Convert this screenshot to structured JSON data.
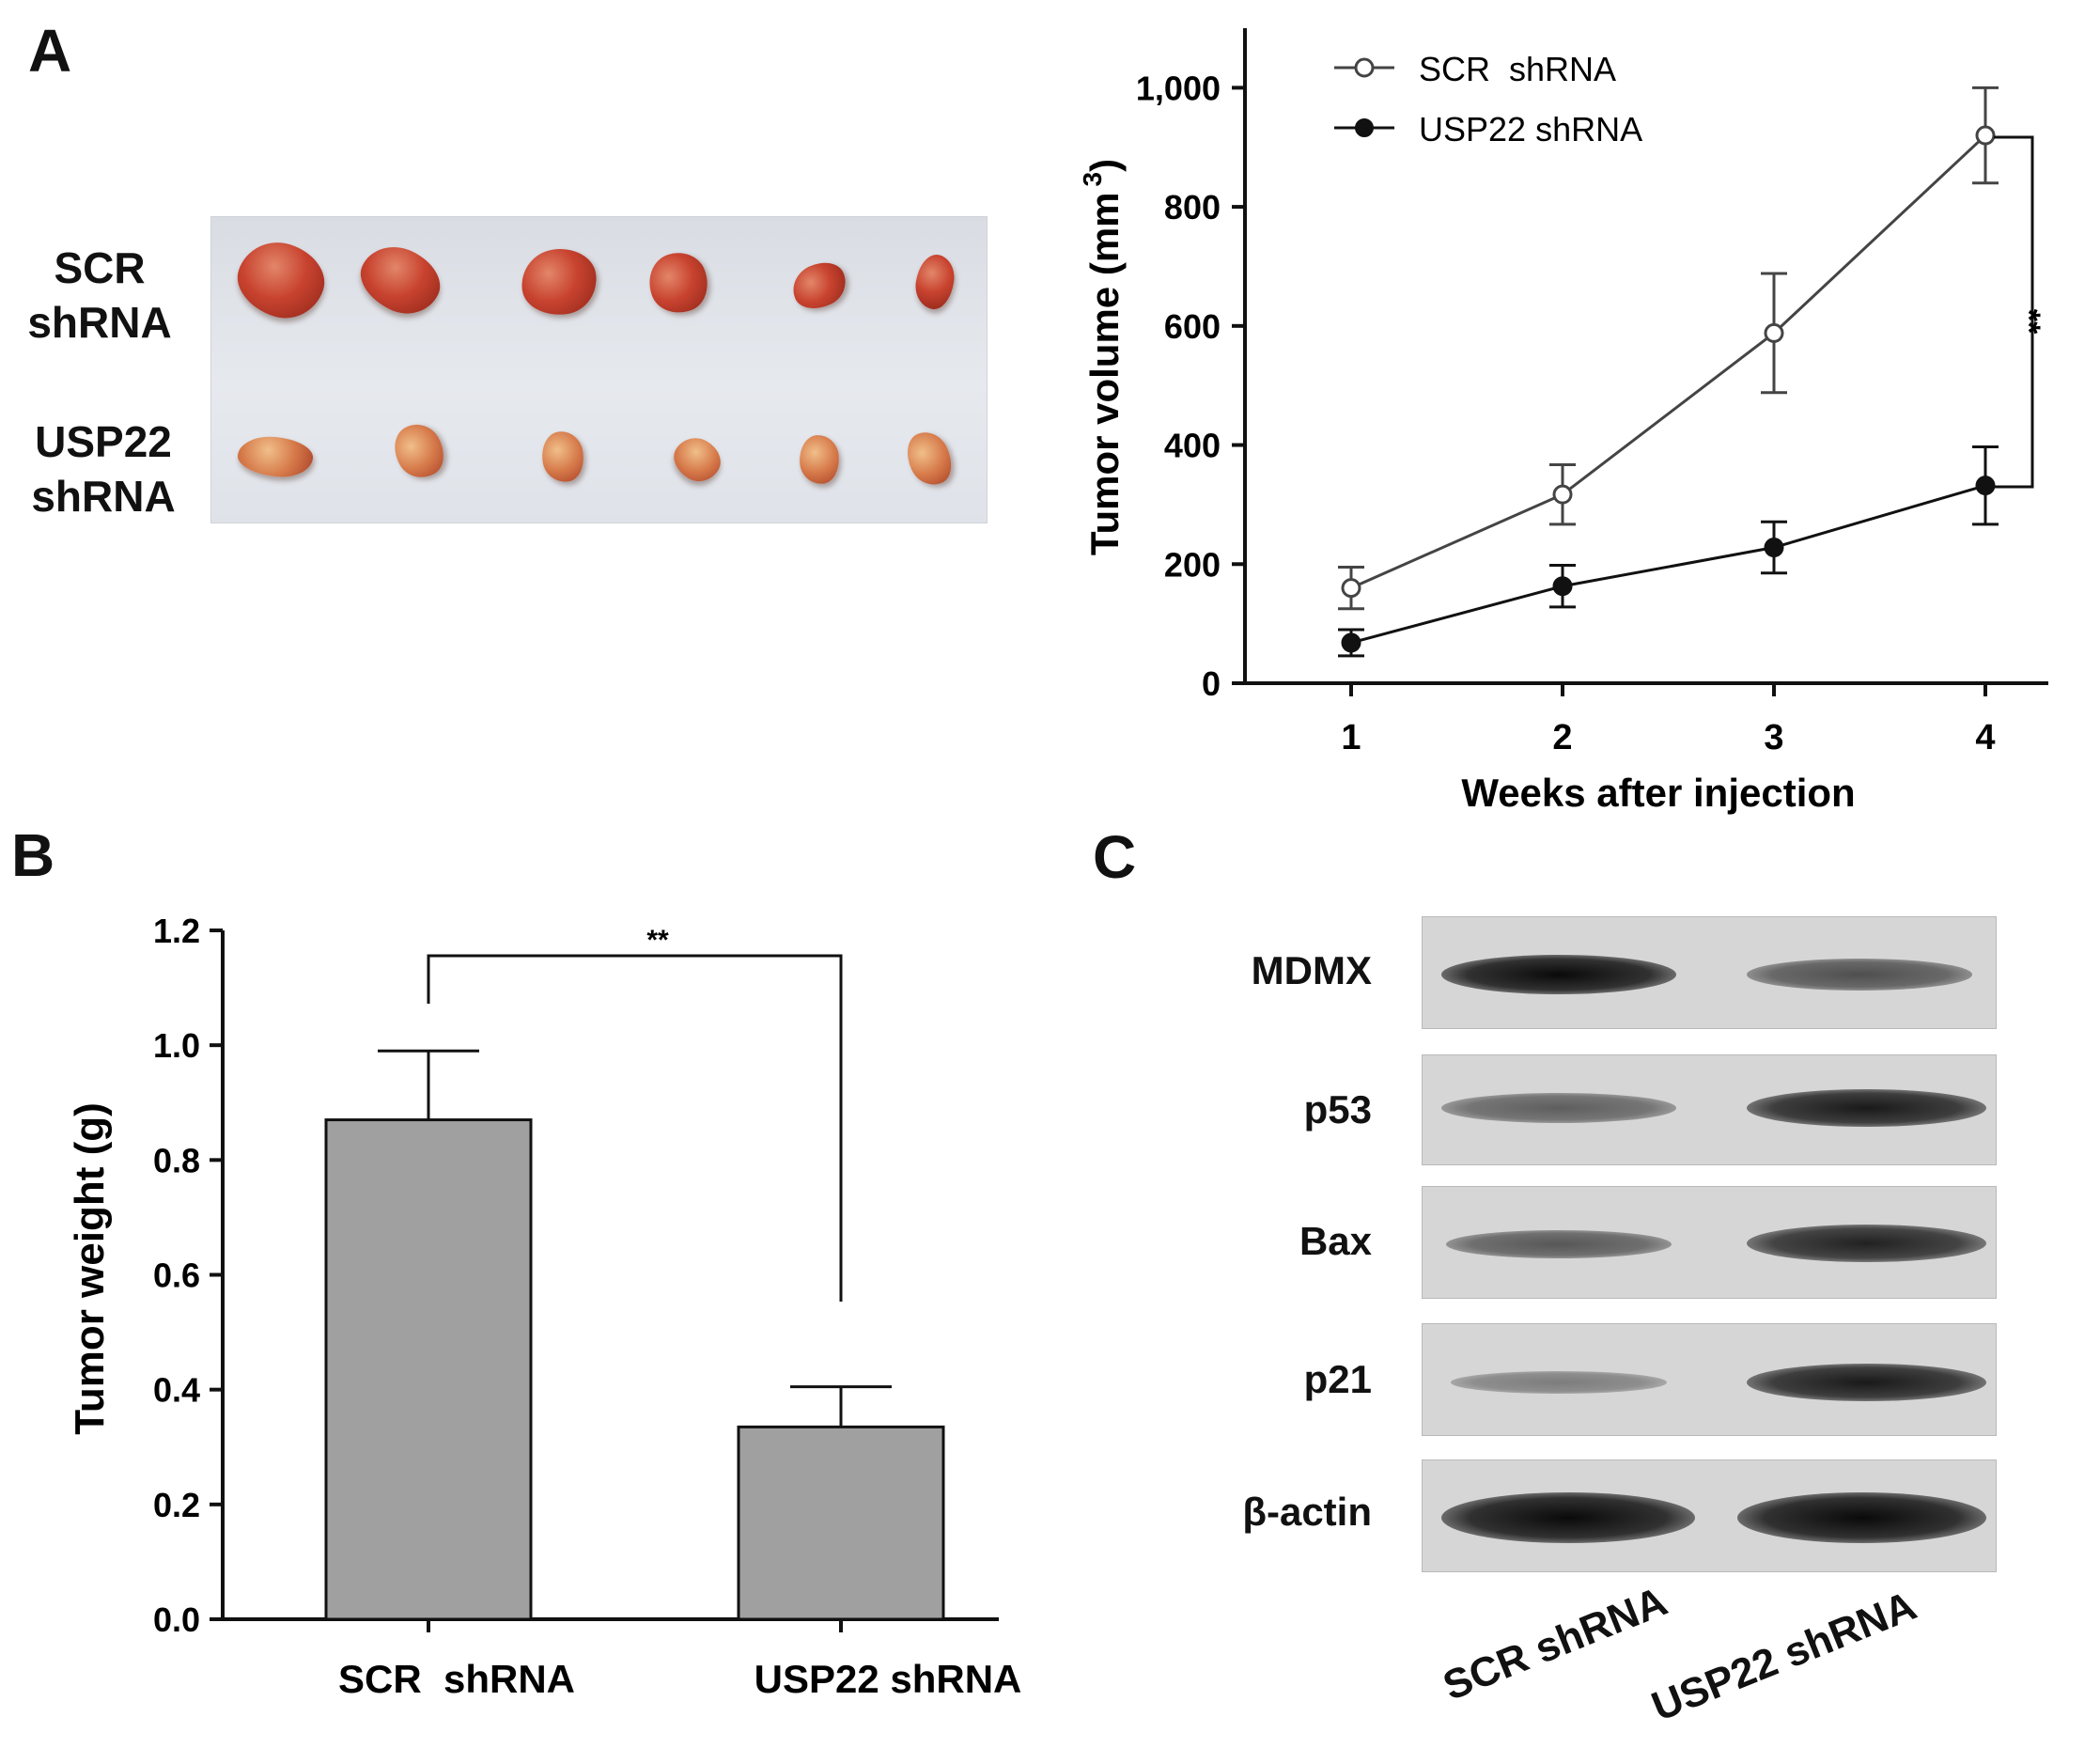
{
  "panels": {
    "a": "A",
    "b": "B",
    "c": "C"
  },
  "photo": {
    "row_labels": [
      {
        "line1": "SCR",
        "line2": "shRNA"
      },
      {
        "line1": "USP22",
        "line2": "shRNA"
      }
    ],
    "tumors_per_row": 6
  },
  "chart_data": [
    {
      "id": "tumor-volume",
      "type": "line",
      "title": "",
      "xlabel": "Weeks after injection",
      "ylabel": "Tumor volume (mm 3)",
      "ylabel_text": "Tumor volume (mm",
      "ylabel_sup": "3",
      "ylabel_close": ")",
      "x": [
        1,
        2,
        3,
        4
      ],
      "x_ticks": [
        "1",
        "2",
        "3",
        "4"
      ],
      "ylim": [
        0,
        1100
      ],
      "y_ticks": [
        0,
        200,
        400,
        600,
        800,
        1000
      ],
      "y_tick_labels": [
        "0",
        "200",
        "400",
        "600",
        "800",
        "1,000"
      ],
      "series": [
        {
          "name": "SCR  shRNA",
          "marker": "open-circle",
          "values": [
            160,
            317,
            588,
            920
          ],
          "errors": [
            35,
            50,
            100,
            80
          ]
        },
        {
          "name": "USP22 shRNA",
          "marker": "filled-circle",
          "values": [
            68,
            163,
            228,
            332
          ],
          "errors": [
            22,
            35,
            43,
            65
          ]
        }
      ],
      "annotation": "**",
      "legend_position": "top-left"
    },
    {
      "id": "tumor-weight",
      "type": "bar",
      "title": "",
      "xlabel": "",
      "ylabel": "Tumor weight (g)",
      "categories": [
        "SCR  shRNA",
        "USP22 shRNA"
      ],
      "values": [
        0.87,
        0.335
      ],
      "errors": [
        0.12,
        0.07
      ],
      "ylim": [
        0,
        1.2
      ],
      "y_ticks": [
        0,
        0.2,
        0.4,
        0.6,
        0.8,
        1.0,
        1.2
      ],
      "y_tick_labels": [
        "0.0",
        "0.2",
        "0.4",
        "0.6",
        "0.8",
        "1.0",
        "1.2"
      ],
      "bar_color": "#a0a0a0",
      "annotation": "**"
    }
  ],
  "western_blot": {
    "proteins": [
      "MDMX",
      "p53",
      "Bax",
      "p21",
      "β-actin"
    ],
    "lanes": [
      "SCR shRNA",
      "USP22 shRNA"
    ],
    "intensity": [
      [
        1.0,
        0.55
      ],
      [
        0.45,
        0.9
      ],
      [
        0.5,
        0.85
      ],
      [
        0.25,
        0.9
      ],
      [
        1.0,
        1.0
      ]
    ]
  },
  "colors": {
    "ink": "#111111",
    "bar": "#a0a0a0",
    "blot_bg": "#d6d6d6",
    "band": "#1a1a1a"
  }
}
